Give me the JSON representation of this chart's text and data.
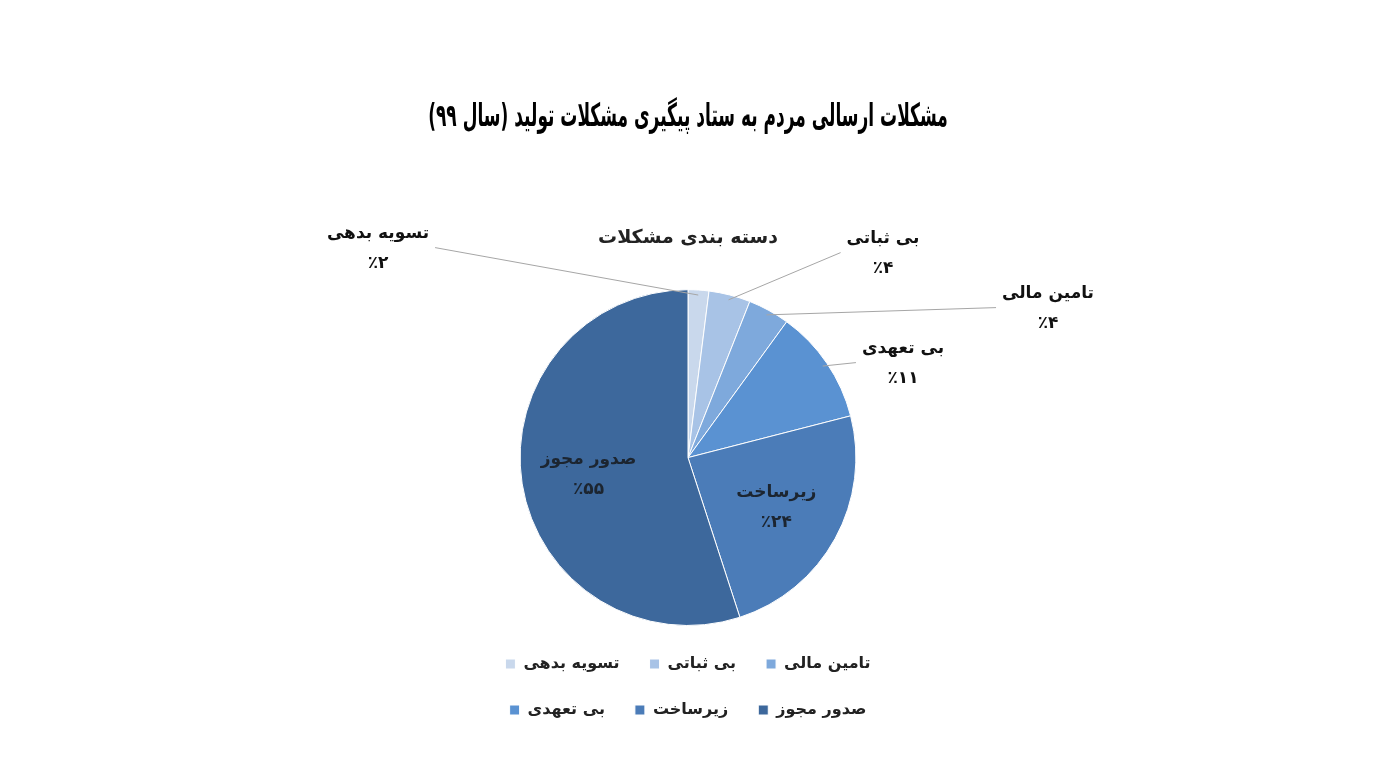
{
  "chart_data": {
    "type": "pie",
    "title": "مشکلات ارسالی مردم به ستاد پیگیری مشکلات تولید (سال ۹۹)",
    "subtitle": "دسته بندی مشکلات",
    "categories": [
      "تسویه بدهی",
      "بی ثباتی",
      "تامین مالی",
      "بی تعهدی",
      "زیرساخت",
      "صدور مجوز"
    ],
    "values": [
      2,
      4,
      4,
      11,
      24,
      55
    ],
    "value_labels": [
      "٪۲",
      "٪۴",
      "٪۴",
      "٪۱۱",
      "٪۲۴",
      "٪۵۵"
    ],
    "colors": [
      "#c9d8ec",
      "#a8c3e6",
      "#7ea9dc",
      "#5a92d2",
      "#4b7cb8",
      "#3d689c"
    ],
    "legend": "bottom"
  }
}
